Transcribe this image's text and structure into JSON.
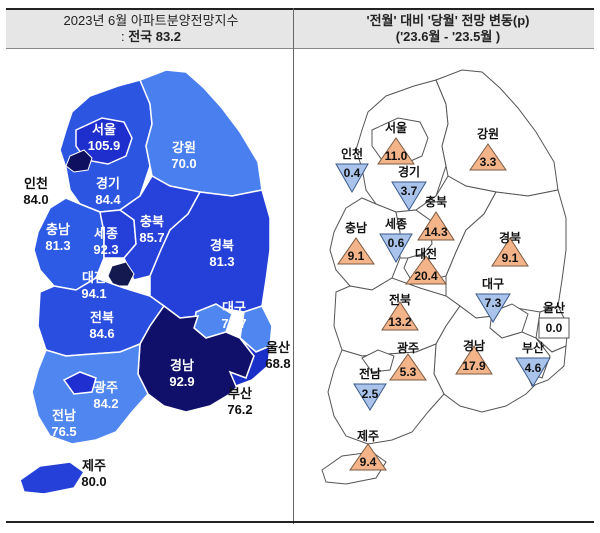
{
  "left_panel": {
    "title_line1": "2023년 6월 아파트분양전망지수",
    "title_line2_prefix": ": ",
    "title_line2_label": "전국 83.2",
    "regions": [
      {
        "name": "서울",
        "value": "105.9"
      },
      {
        "name": "강원",
        "value": "70.0"
      },
      {
        "name": "인천",
        "value": "84.0"
      },
      {
        "name": "경기",
        "value": "84.4"
      },
      {
        "name": "충남",
        "value": "81.3"
      },
      {
        "name": "세종",
        "value": "92.3"
      },
      {
        "name": "충북",
        "value": "85.7"
      },
      {
        "name": "경북",
        "value": "81.3"
      },
      {
        "name": "대전",
        "value": "94.1"
      },
      {
        "name": "대구",
        "value": "72.7"
      },
      {
        "name": "전북",
        "value": "84.6"
      },
      {
        "name": "울산",
        "value": "68.8"
      },
      {
        "name": "경남",
        "value": "92.9"
      },
      {
        "name": "광주",
        "value": "84.2"
      },
      {
        "name": "부산",
        "value": "76.2"
      },
      {
        "name": "전남",
        "value": "76.5"
      },
      {
        "name": "제주",
        "value": "80.0"
      }
    ]
  },
  "right_panel": {
    "title_line1": "'전월' 대비 '당월' 전망 변동(p)",
    "title_line2": "('23.6월 - '23.5월 )",
    "regions": [
      {
        "name": "서울",
        "value": "11.0",
        "direction": "up"
      },
      {
        "name": "강원",
        "value": "3.3",
        "direction": "up"
      },
      {
        "name": "인천",
        "value": "0.4",
        "direction": "down"
      },
      {
        "name": "경기",
        "value": "3.7",
        "direction": "down"
      },
      {
        "name": "충북",
        "value": "14.3",
        "direction": "up"
      },
      {
        "name": "충남",
        "value": "9.1",
        "direction": "up"
      },
      {
        "name": "세종",
        "value": "0.6",
        "direction": "down"
      },
      {
        "name": "경북",
        "value": "9.1",
        "direction": "up"
      },
      {
        "name": "대전",
        "value": "20.4",
        "direction": "up"
      },
      {
        "name": "대구",
        "value": "7.3",
        "direction": "down"
      },
      {
        "name": "울산",
        "value": "0.0",
        "direction": "none"
      },
      {
        "name": "전북",
        "value": "13.2",
        "direction": "up"
      },
      {
        "name": "경남",
        "value": "17.9",
        "direction": "up"
      },
      {
        "name": "부산",
        "value": "4.6",
        "direction": "down"
      },
      {
        "name": "광주",
        "value": "5.3",
        "direction": "up"
      },
      {
        "name": "전남",
        "value": "2.5",
        "direction": "down"
      },
      {
        "name": "제주",
        "value": "9.4",
        "direction": "up"
      }
    ]
  },
  "colors": {
    "level_high": "#10106a",
    "level_mid_high": "#1f2fd0",
    "level_mid": "#2e5be6",
    "level_low": "#4f86f0",
    "increase": "#f4b48a",
    "decrease": "#a9c3ea",
    "no_change": "#ffffff"
  }
}
